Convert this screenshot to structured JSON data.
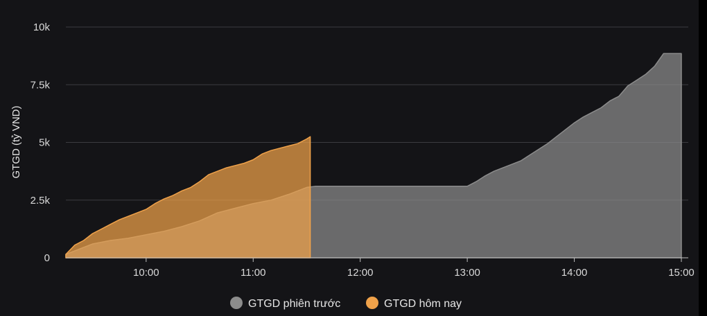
{
  "chart_data": {
    "type": "area",
    "title": "",
    "xlabel": "",
    "ylabel": "GTGD (tỷ VND)",
    "ylim": [
      0,
      10000
    ],
    "xlim": [
      "09:15",
      "15:00"
    ],
    "y_ticks": [
      0,
      2500,
      5000,
      7500,
      10000
    ],
    "y_tick_labels": [
      "0",
      "2.5k",
      "5k",
      "7.5k",
      "10k"
    ],
    "x_ticks": [
      "10:00",
      "11:00",
      "12:00",
      "13:00",
      "14:00",
      "15:00"
    ],
    "grid": "horizontal",
    "legend_position": "bottom",
    "colors": {
      "previous": "#8c8c8c",
      "today": "#f0a24a",
      "grid": "#3c3c40",
      "background": "#141417"
    },
    "series": [
      {
        "key": "previous",
        "name": "GTGD phiên trước",
        "x": [
          "09:15",
          "09:20",
          "09:25",
          "09:30",
          "09:40",
          "09:50",
          "10:00",
          "10:10",
          "10:20",
          "10:30",
          "10:40",
          "10:50",
          "11:00",
          "11:10",
          "11:20",
          "11:25",
          "11:30",
          "11:35",
          "11:40",
          "12:00",
          "12:30",
          "13:00",
          "13:05",
          "13:10",
          "13:15",
          "13:20",
          "13:25",
          "13:30",
          "13:35",
          "13:40",
          "13:45",
          "13:50",
          "13:55",
          "14:00",
          "14:05",
          "14:10",
          "14:15",
          "14:20",
          "14:25",
          "14:30",
          "14:35",
          "14:40",
          "14:45",
          "14:50",
          "15:00"
        ],
        "values": [
          150,
          300,
          450,
          600,
          750,
          850,
          1000,
          1150,
          1350,
          1600,
          1950,
          2150,
          2350,
          2500,
          2750,
          2900,
          3050,
          3100,
          3100,
          3100,
          3100,
          3100,
          3300,
          3550,
          3750,
          3900,
          4050,
          4200,
          4450,
          4700,
          4950,
          5250,
          5550,
          5850,
          6100,
          6300,
          6500,
          6800,
          7000,
          7450,
          7700,
          7950,
          8300,
          8850,
          8850
        ]
      },
      {
        "key": "today",
        "name": "GTGD hôm nay",
        "x": [
          "09:15",
          "09:20",
          "09:25",
          "09:30",
          "09:35",
          "09:40",
          "09:45",
          "09:50",
          "09:55",
          "10:00",
          "10:05",
          "10:10",
          "10:15",
          "10:20",
          "10:25",
          "10:30",
          "10:35",
          "10:40",
          "10:45",
          "10:50",
          "10:55",
          "11:00",
          "11:05",
          "11:10",
          "11:15",
          "11:20",
          "11:25",
          "11:30",
          "11:32"
        ],
        "values": [
          150,
          550,
          750,
          1050,
          1250,
          1450,
          1650,
          1800,
          1950,
          2100,
          2350,
          2550,
          2700,
          2900,
          3050,
          3300,
          3600,
          3750,
          3900,
          4000,
          4100,
          4250,
          4500,
          4650,
          4750,
          4850,
          4950,
          5150,
          5250
        ]
      }
    ]
  }
}
